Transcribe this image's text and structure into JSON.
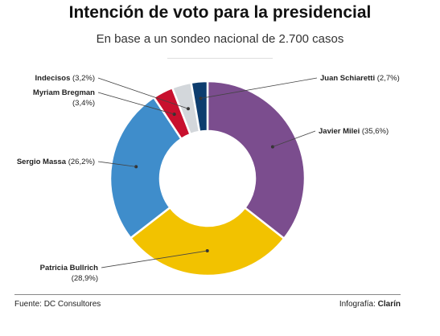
{
  "header": {
    "title": "Intención de voto para la presidencial",
    "subtitle": "En base a un sondeo nacional de 2.700 casos"
  },
  "footer": {
    "source": "Fuente: DC Consultores",
    "credit_prefix": "Infografía: ",
    "credit_brand": "Clarín"
  },
  "chart_data": {
    "type": "pie",
    "donut": true,
    "slices": [
      {
        "name": "Javier Milei",
        "value": 35.6,
        "label": "(35,6%)",
        "color": "#7b4d8e"
      },
      {
        "name": "Patricia Bullrich",
        "value": 28.9,
        "label": "(28,9%)",
        "color": "#f2c200"
      },
      {
        "name": "Sergio Massa",
        "value": 26.2,
        "label": "(26,2%)",
        "color": "#3f8dcb"
      },
      {
        "name": "Myriam Bregman",
        "value": 3.4,
        "label": "(3,4%)",
        "color": "#c8102e"
      },
      {
        "name": "Indecisos",
        "value": 3.2,
        "label": "(3,2%)",
        "color": "#d3d7db"
      },
      {
        "name": "Juan Schiaretti",
        "value": 2.7,
        "label": "(2,7%)",
        "color": "#0d3d6e"
      }
    ]
  }
}
